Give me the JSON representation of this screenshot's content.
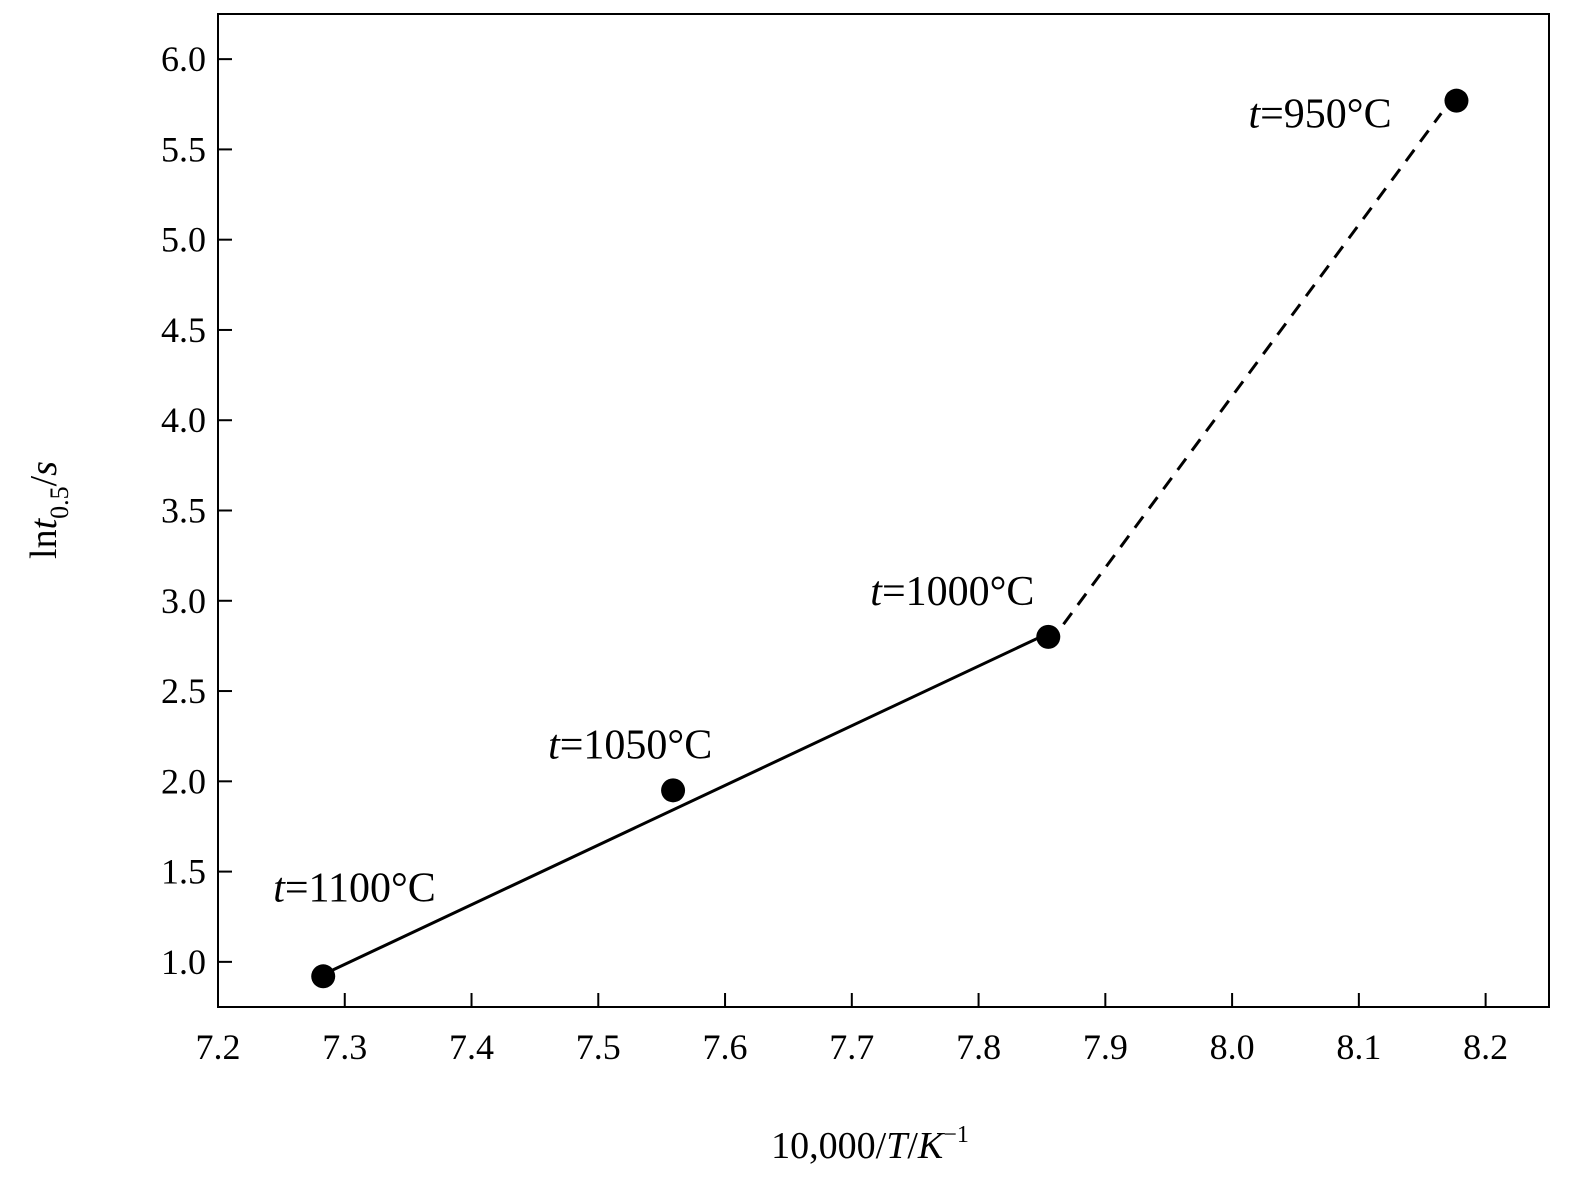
{
  "chart_data": {
    "type": "scatter",
    "xlabel": {
      "prefix": "10,000/",
      "var1": "T",
      "sep": "/",
      "var2": "K",
      "sup": "−1"
    },
    "ylabel": {
      "prefix": "ln",
      "var": "t",
      "sub": "0.5",
      "suffix": "/",
      "unit": "s"
    },
    "xlim": [
      7.2,
      8.25
    ],
    "ylim": [
      0.75,
      6.25
    ],
    "xticks": [
      "7.2",
      "7.3",
      "7.4",
      "7.5",
      "7.6",
      "7.7",
      "7.8",
      "7.9",
      "8.0",
      "8.1",
      "8.2"
    ],
    "yticks": [
      "1.0",
      "1.5",
      "2.0",
      "2.5",
      "3.0",
      "3.5",
      "4.0",
      "4.5",
      "5.0",
      "5.5",
      "6.0"
    ],
    "points": [
      {
        "x": 7.283,
        "y": 0.92,
        "label_var": "t",
        "label_text": "=1100°C"
      },
      {
        "x": 7.559,
        "y": 1.95,
        "label_var": "t",
        "label_text": "=1050°C"
      },
      {
        "x": 7.855,
        "y": 2.8,
        "label_var": "t",
        "label_text": "=1000°C"
      },
      {
        "x": 8.177,
        "y": 5.77,
        "label_var": "t",
        "label_text": "=950°C"
      }
    ],
    "fit_lines": [
      {
        "style": "solid",
        "x": [
          7.283,
          7.855
        ],
        "y": [
          0.93,
          2.82
        ]
      },
      {
        "style": "dashed",
        "x": [
          7.867,
          8.165
        ],
        "y": [
          2.87,
          5.7
        ]
      }
    ],
    "grid": false,
    "legend": "none",
    "colors": {
      "marker": "#000000",
      "line": "#000000",
      "axis": "#000000"
    }
  }
}
